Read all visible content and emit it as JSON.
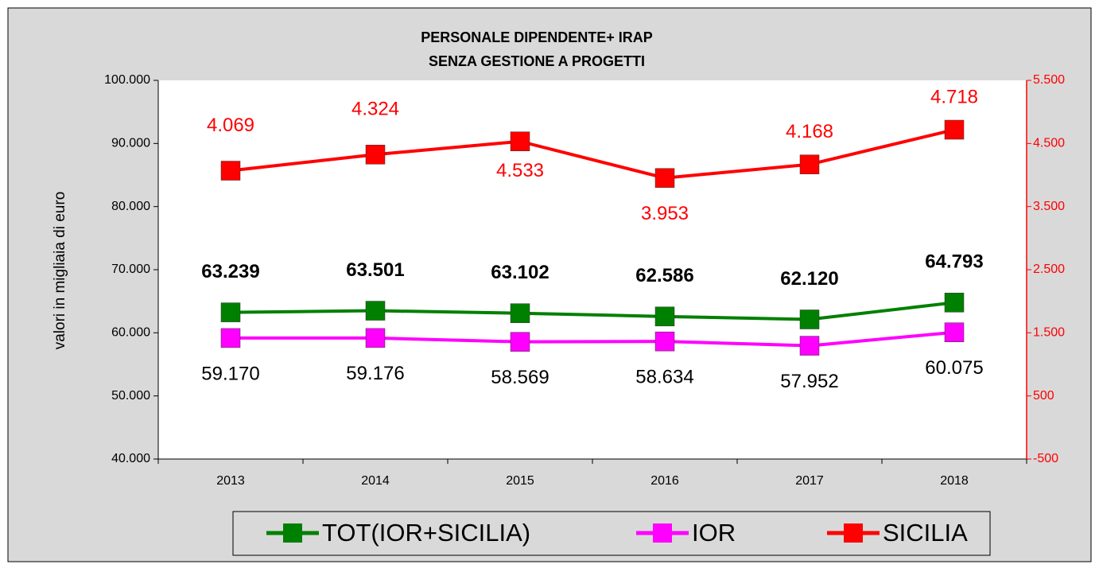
{
  "chart_data": {
    "type": "line",
    "title": "PERSONALE DIPENDENTE+ IRAP",
    "subtitle": "SENZA GESTIONE A PROGETTI",
    "y_label": "valori in migliaia di euro",
    "categories": [
      "2013",
      "2014",
      "2015",
      "2016",
      "2017",
      "2018"
    ],
    "series": [
      {
        "name": "TOT(IOR+SICILIA)",
        "color": "#008000",
        "axis": "y",
        "values": [
          63239,
          63501,
          63102,
          62586,
          62120,
          64793
        ],
        "value_labels": [
          "63.239",
          "63.501",
          "63.102",
          "62.586",
          "62.120",
          "64.793"
        ]
      },
      {
        "name": "IOR",
        "color": "#ff00ff",
        "axis": "y",
        "values": [
          59170,
          59176,
          58569,
          58634,
          57952,
          60075
        ],
        "value_labels": [
          "59.170",
          "59.176",
          "58.569",
          "58.634",
          "57.952",
          "60.075"
        ]
      },
      {
        "name": "SICILIA",
        "color": "#ff0000",
        "axis": "y2",
        "values": [
          4069,
          4324,
          4533,
          3953,
          4168,
          4718
        ],
        "value_labels": [
          "4.069",
          "4.324",
          "4.533",
          "3.953",
          "4.168",
          "4.718"
        ]
      }
    ],
    "ylim": [
      40000,
      100000
    ],
    "yticks": [
      {
        "value": 40000,
        "label": "40.000"
      },
      {
        "value": 50000,
        "label": "50.000"
      },
      {
        "value": 60000,
        "label": "60.000"
      },
      {
        "value": 70000,
        "label": "70.000"
      },
      {
        "value": 80000,
        "label": "80.000"
      },
      {
        "value": 90000,
        "label": "90.000"
      },
      {
        "value": 100000,
        "label": "100.000"
      }
    ],
    "y2lim": [
      -500,
      5500
    ],
    "y2ticks": [
      -500,
      500,
      {
        "value": 1500,
        "label": "1.500"
      },
      {
        "value": 2500,
        "label": "2.500"
      },
      {
        "value": 3500,
        "label": "3.500"
      },
      {
        "value": 4500,
        "label": "4.500"
      },
      {
        "value": 5500,
        "label": "5.500"
      }
    ],
    "y2color": "#ff0000",
    "legend": "bottom"
  }
}
